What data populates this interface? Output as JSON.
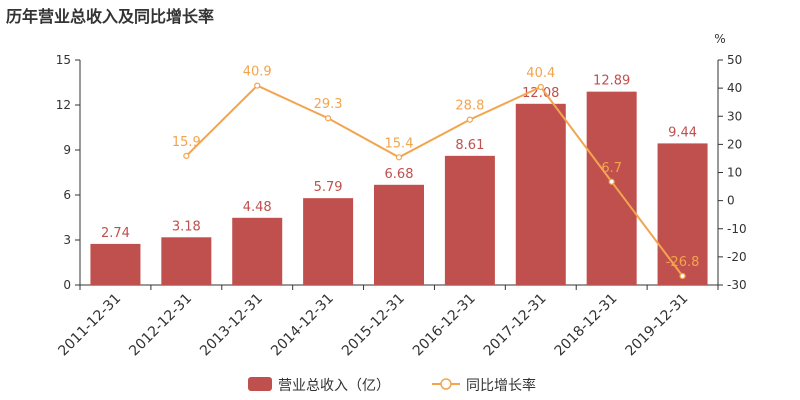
{
  "title": "历年营业总收入及同比增长率",
  "chart_data": {
    "type": "bar",
    "categories": [
      "2011-12-31",
      "2012-12-31",
      "2013-12-31",
      "2014-12-31",
      "2015-12-31",
      "2016-12-31",
      "2017-12-31",
      "2018-12-31",
      "2019-12-31"
    ],
    "series": [
      {
        "name": "营业总收入（亿）",
        "type": "bar",
        "axis": "left",
        "values": [
          2.74,
          3.18,
          4.48,
          5.79,
          6.68,
          8.61,
          12.08,
          12.89,
          9.44
        ],
        "color": "#c0504d"
      },
      {
        "name": "同比增长率",
        "type": "line",
        "axis": "right",
        "values": [
          null,
          15.9,
          40.9,
          29.3,
          15.4,
          28.8,
          40.4,
          6.7,
          -26.8
        ],
        "color": "#f3a44f"
      }
    ],
    "y_left": {
      "ylim": [
        0,
        15
      ],
      "ticks": [
        0,
        3,
        6,
        9,
        12,
        15
      ]
    },
    "y_right": {
      "ylim": [
        -30,
        50
      ],
      "ticks": [
        -30,
        -20,
        -10,
        0,
        10,
        20,
        30,
        40,
        50
      ],
      "unit": "%"
    },
    "grid": false,
    "legend": "bottom-center"
  }
}
